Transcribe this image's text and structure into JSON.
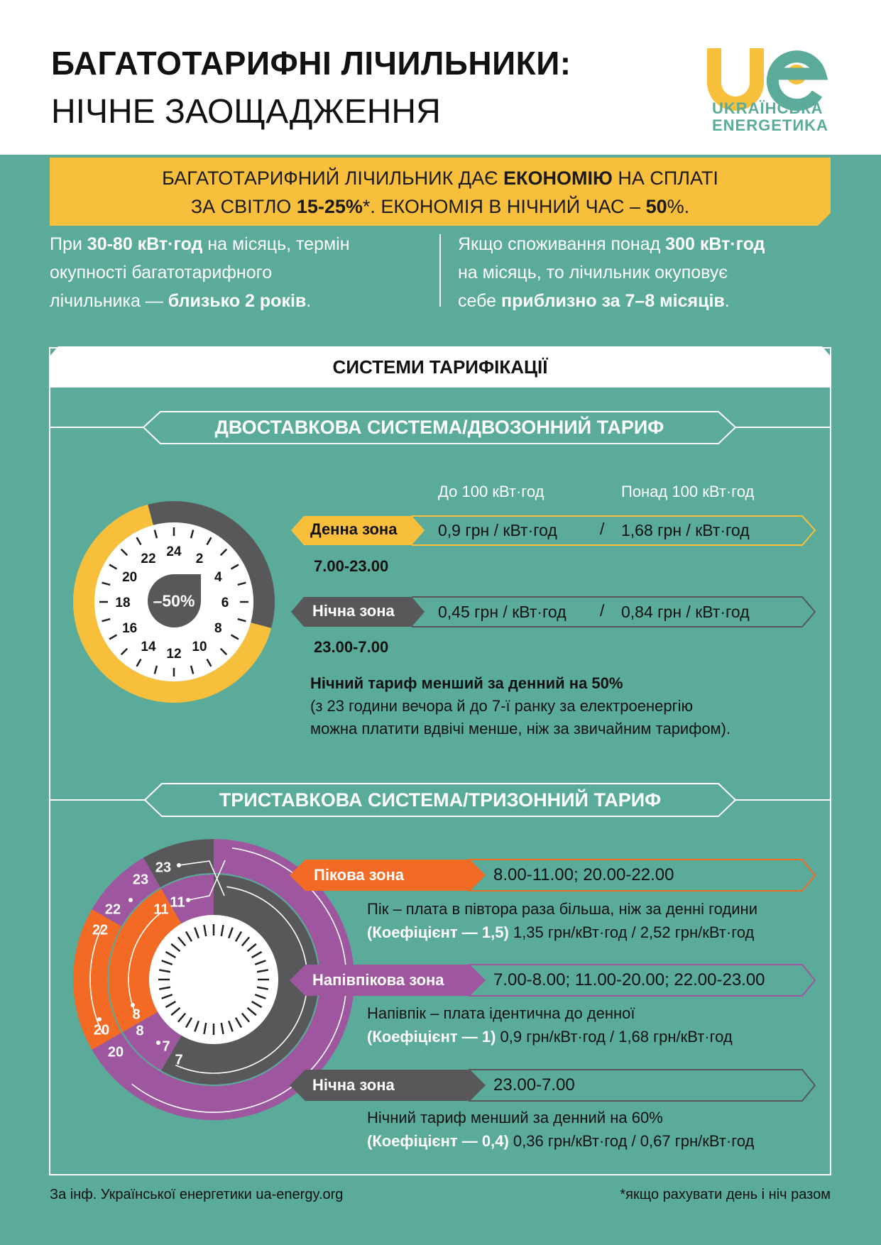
{
  "header": {
    "title_line1": "БАГАТОТАРИФНІ ЛІЧИЛЬНИКИ:",
    "title_line2": "НІЧНЕ ЗАОЩАДЖЕННЯ",
    "logo": {
      "mark": "ue",
      "line1": "UKRAЇНСЬКА",
      "line2": "ENERGETИKA"
    }
  },
  "banner": {
    "l1_a": "БАГАТОТАРИФНИЙ ЛІЧИЛЬНИК ДАЄ ",
    "l1_b": "ЕКОНОМІЮ",
    "l1_c": " НА СПЛАТІ",
    "l2_a": "ЗА СВІТЛО ",
    "l2_b": "15-25%",
    "l2_c": "*. ЕКОНОМІЯ В НІЧНИЙ ЧАС – ",
    "l2_d": "50",
    "l2_e": "%."
  },
  "facts": {
    "left": {
      "l1_a": "При ",
      "l1_b": "30-80 кВт·год",
      "l1_c": " на місяць, термін",
      "l2": "окупності багатотарифного",
      "l3_a": "лічильника — ",
      "l3_b": "близько 2 років",
      "l3_c": "."
    },
    "right": {
      "l1_a": "Якщо споживання понад ",
      "l1_b": "300 кВт·год",
      "l2": "на місяць, то лічильник окуповує",
      "l3_a": "себе ",
      "l3_b": "приблизно за 7–8 місяців",
      "l3_c": "."
    }
  },
  "systems": {
    "title": "СИСТЕМИ ТАРИФІКАЦІЇ",
    "two_zone": {
      "title": "ДВОСТАВКОВА СИСТЕМА/ДВОЗОННИЙ ТАРИФ",
      "col_headers": [
        "До 100 кВт·год",
        "Понад 100 кВт·год"
      ],
      "clock": {
        "numbers": [
          "24",
          "2",
          "4",
          "6",
          "8",
          "10",
          "12",
          "14",
          "16",
          "18",
          "20",
          "22"
        ],
        "center_label": "–50%",
        "night_hours": [
          23,
          7
        ],
        "day_hours": [
          7,
          23
        ]
      },
      "rows": [
        {
          "label": "Денна зона",
          "price1": "0,9 грн / кВт·год",
          "sep": "/",
          "price2": "1,68 грн / кВт·год",
          "time": "7.00-23.00",
          "color": "#f7bf3b"
        },
        {
          "label": "Нічна зона",
          "price1": "0,45 грн / кВт·год",
          "sep": "/",
          "price2": "0,84 грн / кВт·год",
          "time": "23.00-7.00",
          "color": "#58585a"
        }
      ],
      "note_bold": "Нічний тариф менший за денний на 50%",
      "note_l2": "(з 23 години вечора й до 7-ї ранку за електроенергію",
      "note_l3": "можна платити вдвічі менше, ніж за звичайним тарифом)."
    },
    "three_zone": {
      "title": "ТРИСТАВКОВА СИСТЕМА/ТРИЗОННИЙ ТАРИФ",
      "clock": {
        "outer_labels": [
          "23",
          "23",
          "22",
          "22",
          "20",
          "20",
          "7"
        ],
        "inner_labels": [
          "11",
          "11",
          "8",
          "8",
          "7"
        ],
        "outer_segments": [
          {
            "from": 20,
            "to": 22,
            "zone": "peak"
          },
          {
            "from": 22,
            "to": 23,
            "zone": "semi-peak"
          },
          {
            "from": 23,
            "to": 24,
            "zone": "night"
          },
          {
            "from": 12,
            "to": 20,
            "zone": "semi-peak"
          }
        ],
        "inner_segments": [
          {
            "from": 0,
            "to": 7,
            "zone": "night"
          },
          {
            "from": 7,
            "to": 8,
            "zone": "semi-peak"
          },
          {
            "from": 8,
            "to": 11,
            "zone": "peak"
          },
          {
            "from": 11,
            "to": 12,
            "zone": "semi-peak"
          }
        ]
      },
      "rows": [
        {
          "label": "Пікова зона",
          "hours": "8.00-11.00; 20.00-22.00",
          "desc": "Пік – плата в півтора раза більша, ніж за денні години",
          "coef": "(Коефіцієнт — 1,5)",
          "prices": " 1,35 грн/кВт·год /  2,52 грн/кВт·год",
          "color": "#f26a24"
        },
        {
          "label": "Напівпікова зона",
          "hours": "7.00-8.00; 11.00-20.00; 22.00-23.00",
          "desc": "Напівпік – плата ідентична до денної",
          "coef": "(Коефіцієнт — 1)",
          "prices": " 0,9 грн/кВт·год / 1,68 грн/кВт·год",
          "color": "#9e579e"
        },
        {
          "label": "Нічна зона",
          "hours": "23.00-7.00",
          "desc": "Нічний тариф менший за денний на 60%",
          "coef": "(Коефіцієнт — 0,4)",
          "prices": " 0,36 грн/кВт·год / 0,67 грн/кВт·год",
          "color": "#58585a"
        }
      ]
    }
  },
  "footer": {
    "source": "За інф. Української енергетики ua-energy.org",
    "footnote": "*якщо рахувати день і ніч разом"
  },
  "colors": {
    "teal": "#5aab9a",
    "yellow": "#f7bf3b",
    "orange": "#f26a24",
    "purple": "#9e579e",
    "dark": "#58585a"
  }
}
